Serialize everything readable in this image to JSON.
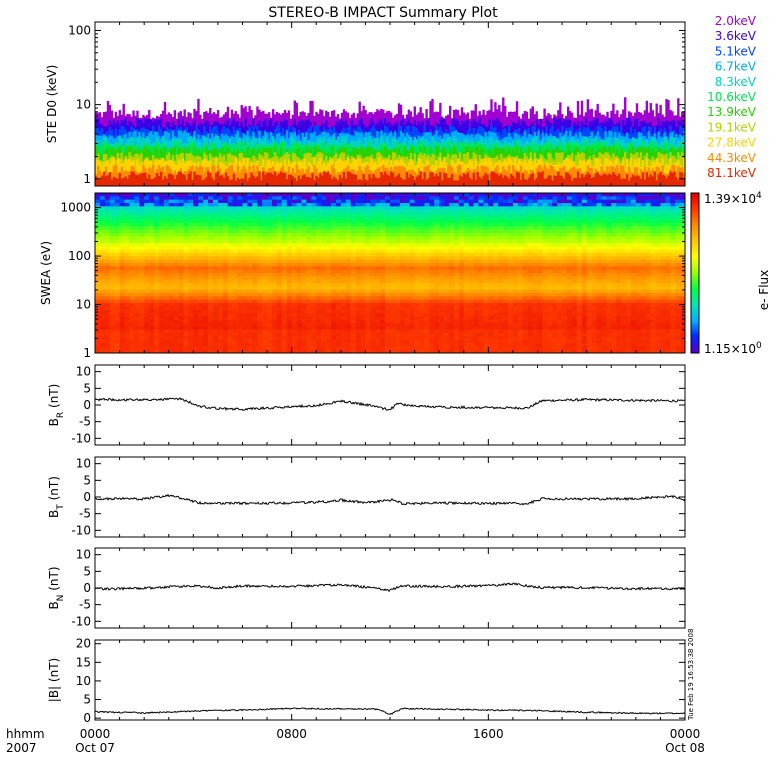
{
  "title": "STEREO-B IMPACT Summary Plot",
  "colors": {
    "text": "#000000",
    "colorbar_stops": [
      "#5a00c8",
      "#0028ff",
      "#00b4ff",
      "#00e6b4",
      "#00ff46",
      "#96ff00",
      "#ffff00",
      "#ffc800",
      "#ff8c00",
      "#ff3c00",
      "#e60000"
    ]
  },
  "time_axis": {
    "row_label_1": "hhmm",
    "row_label_2": "2007",
    "ticks": [
      {
        "hhmm": "0000",
        "date": "Oct 07"
      },
      {
        "hhmm": "0800",
        "date": ""
      },
      {
        "hhmm": "1600",
        "date": ""
      },
      {
        "hhmm": "0000",
        "date": "Oct 08"
      }
    ],
    "range_hours": [
      0,
      24
    ]
  },
  "timestamp": "Tue Feb 19 16:53:38 2008",
  "chart_data": [
    {
      "id": "ste",
      "type": "line",
      "ylabel": "STE D0 (keV)",
      "yscale": "log",
      "ylim": [
        0.8,
        130
      ],
      "yticks": [
        "1",
        "10",
        "100"
      ],
      "ytick_values": [
        1,
        10,
        100
      ],
      "series": [
        {
          "name": "2.0keV",
          "color": "#a000d0",
          "level": 7.5
        },
        {
          "name": "3.6keV",
          "color": "#3c00e6",
          "level": 5.8
        },
        {
          "name": "5.1keV",
          "color": "#0046ff",
          "level": 4.6
        },
        {
          "name": "6.7keV",
          "color": "#00aaff",
          "level": 3.9
        },
        {
          "name": "8.3keV",
          "color": "#00d2c8",
          "level": 3.3
        },
        {
          "name": "10.6keV",
          "color": "#00e650",
          "level": 2.8
        },
        {
          "name": "13.9keV",
          "color": "#28d200",
          "level": 2.4
        },
        {
          "name": "19.1keV",
          "color": "#b4d200",
          "level": 2.0
        },
        {
          "name": "27.8keV",
          "color": "#ffd200",
          "level": 1.7
        },
        {
          "name": "44.3keV",
          "color": "#ff8c00",
          "level": 1.35
        },
        {
          "name": "81.1keV",
          "color": "#e62800",
          "level": 1.1
        }
      ]
    },
    {
      "id": "swea",
      "type": "heatmap",
      "ylabel": "SWEA (eV)",
      "yscale": "log",
      "ylim": [
        1,
        2000
      ],
      "yticks": [
        "1",
        "10",
        "100",
        "1000"
      ],
      "ytick_values": [
        1,
        10,
        100,
        1000
      ],
      "colorbar_label": "e- Flux",
      "colorbar_max": {
        "mantissa": "1.39",
        "exp": "4"
      },
      "colorbar_min": {
        "mantissa": "1.15",
        "exp": "0"
      }
    },
    {
      "id": "br",
      "type": "line",
      "ylabel_main": "B",
      "ylabel_sub": "R",
      "ylabel_unit": "(nT)",
      "ylim": [
        -12,
        12
      ],
      "yticks": [
        "10",
        "5",
        "0",
        "-5",
        "-10"
      ],
      "ytick_values": [
        10,
        5,
        0,
        -5,
        -10
      ],
      "keyframes": [
        [
          0,
          1.7
        ],
        [
          2,
          1.5
        ],
        [
          3.5,
          1.8
        ],
        [
          4.3,
          -0.4
        ],
        [
          5,
          -1.0
        ],
        [
          6,
          -1.3
        ],
        [
          7,
          -0.9
        ],
        [
          8,
          -0.5
        ],
        [
          9,
          -0.2
        ],
        [
          10,
          1.2
        ],
        [
          11,
          0.1
        ],
        [
          12,
          -1.4
        ],
        [
          12.3,
          0.4
        ],
        [
          13,
          -0.3
        ],
        [
          14,
          -0.6
        ],
        [
          16,
          -0.8
        ],
        [
          17.6,
          -0.9
        ],
        [
          18.2,
          1.3
        ],
        [
          20,
          1.6
        ],
        [
          22,
          1.4
        ],
        [
          24,
          1.2
        ]
      ]
    },
    {
      "id": "bt",
      "type": "line",
      "ylabel_main": "B",
      "ylabel_sub": "T",
      "ylabel_unit": "(nT)",
      "ylim": [
        -12,
        12
      ],
      "yticks": [
        "10",
        "5",
        "0",
        "-5",
        "-10"
      ],
      "ytick_values": [
        10,
        5,
        0,
        -5,
        -10
      ],
      "keyframes": [
        [
          0,
          -0.5
        ],
        [
          2,
          -0.6
        ],
        [
          3,
          0.5
        ],
        [
          3.5,
          -0.3
        ],
        [
          4.3,
          -1.8
        ],
        [
          6,
          -1.9
        ],
        [
          8,
          -1.8
        ],
        [
          9.5,
          -1.4
        ],
        [
          10,
          -0.9
        ],
        [
          11,
          -1.7
        ],
        [
          12.2,
          -0.8
        ],
        [
          12.5,
          -2.0
        ],
        [
          14,
          -1.8
        ],
        [
          16,
          -1.9
        ],
        [
          17.6,
          -2.0
        ],
        [
          18.2,
          -0.5
        ],
        [
          20,
          -0.6
        ],
        [
          22,
          -0.5
        ],
        [
          23.5,
          0.2
        ],
        [
          24,
          -0.8
        ]
      ]
    },
    {
      "id": "bn",
      "type": "line",
      "ylabel_main": "B",
      "ylabel_sub": "N",
      "ylabel_unit": "(nT)",
      "ylim": [
        -12,
        12
      ],
      "yticks": [
        "10",
        "5",
        "0",
        "-5",
        "-10"
      ],
      "ytick_values": [
        10,
        5,
        0,
        -5,
        -10
      ],
      "keyframes": [
        [
          0,
          -0.3
        ],
        [
          2,
          -0.1
        ],
        [
          4,
          0.7
        ],
        [
          5,
          0.0
        ],
        [
          6,
          0.6
        ],
        [
          8,
          0.5
        ],
        [
          10,
          0.9
        ],
        [
          11,
          0.3
        ],
        [
          12,
          -0.7
        ],
        [
          12.5,
          0.6
        ],
        [
          14,
          0.4
        ],
        [
          16,
          0.7
        ],
        [
          17,
          1.3
        ],
        [
          18,
          0.2
        ],
        [
          20,
          0.1
        ],
        [
          22,
          -0.2
        ],
        [
          24,
          -0.2
        ]
      ]
    },
    {
      "id": "bmag",
      "type": "line",
      "ylabel": "|B| (nT)",
      "ylim": [
        -0.5,
        21
      ],
      "yticks": [
        "20",
        "15",
        "10",
        "5",
        "0"
      ],
      "ytick_values": [
        20,
        15,
        10,
        5,
        0
      ],
      "keyframes": [
        [
          0,
          1.7
        ],
        [
          2,
          1.4
        ],
        [
          4,
          1.9
        ],
        [
          6,
          2.2
        ],
        [
          8,
          2.6
        ],
        [
          10,
          2.5
        ],
        [
          11.5,
          2.4
        ],
        [
          12,
          1.0
        ],
        [
          12.5,
          2.6
        ],
        [
          14,
          2.4
        ],
        [
          16,
          2.2
        ],
        [
          18,
          2.0
        ],
        [
          20,
          1.6
        ],
        [
          22,
          1.3
        ],
        [
          24,
          1.3
        ]
      ]
    }
  ]
}
